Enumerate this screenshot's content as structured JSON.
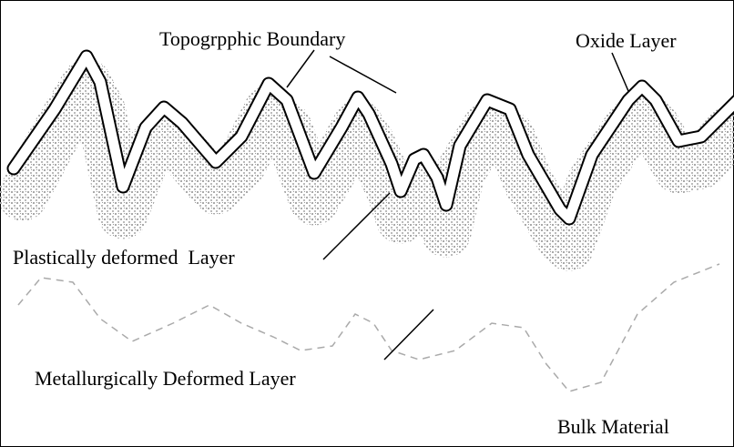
{
  "labels": {
    "topographic_boundary": "Topogrpphic Boundary",
    "oxide_layer": "Oxide Layer",
    "plastically_deformed_layer": "Plastically deformed  Layer",
    "metallurgically_deformed_layer": "Metallurgically Deformed Layer",
    "bulk_material": "Bulk Material"
  }
}
